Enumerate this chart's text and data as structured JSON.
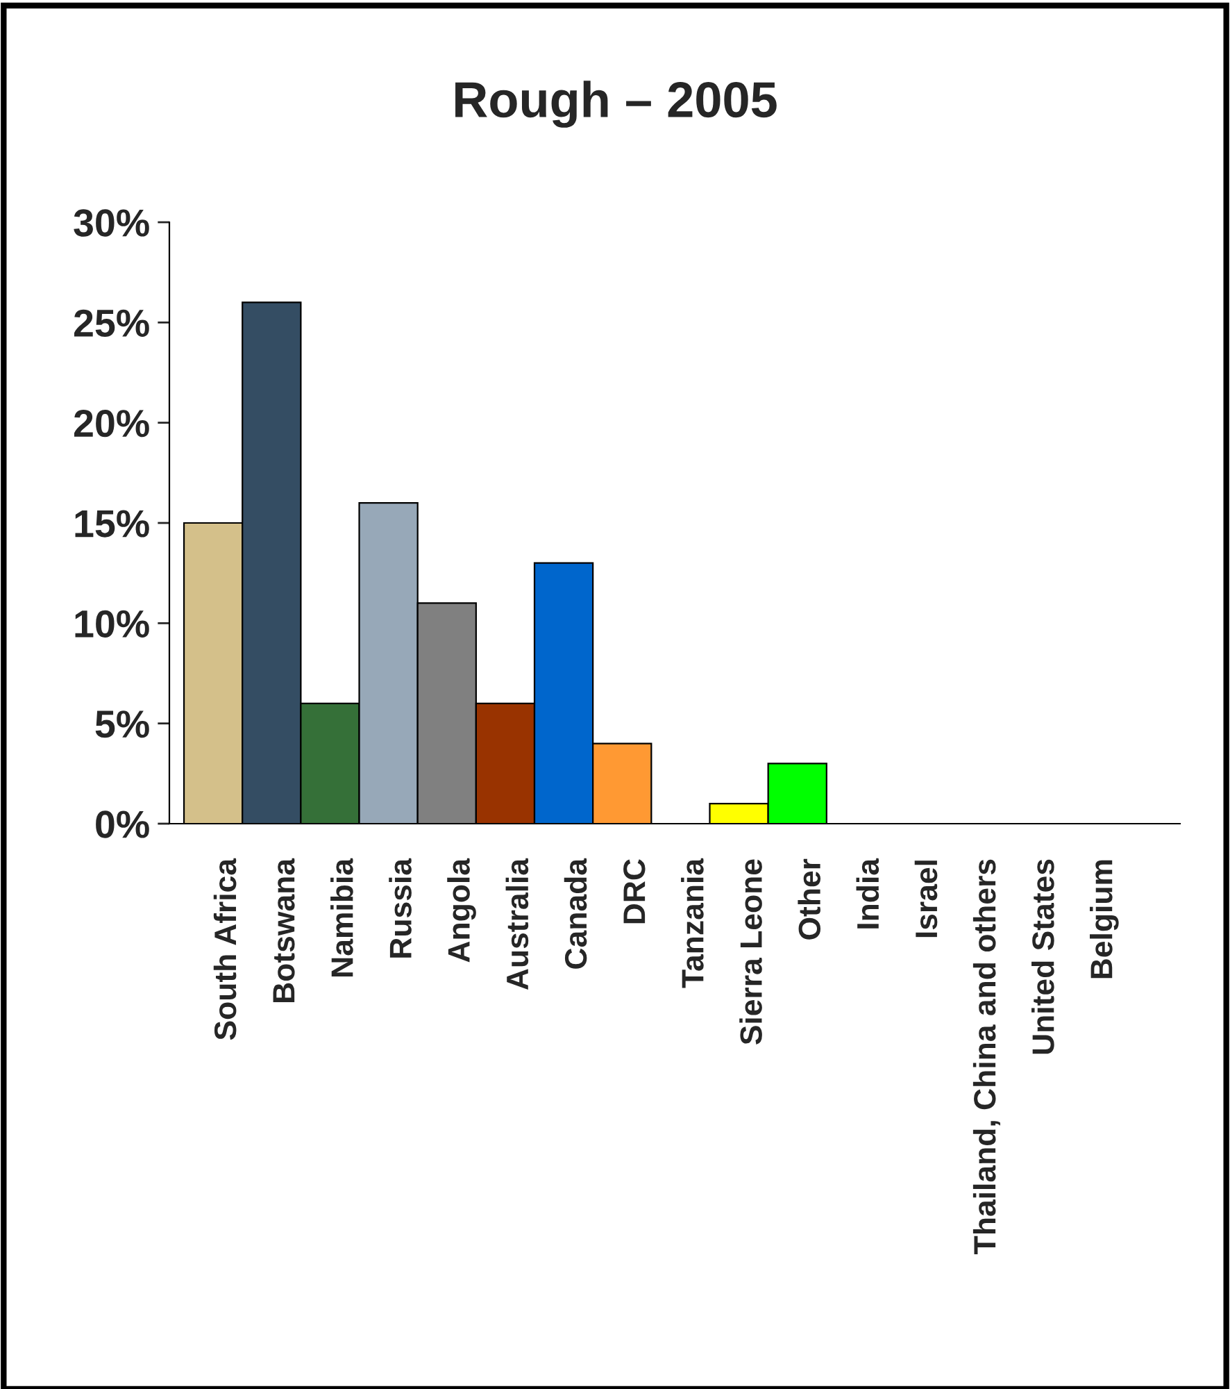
{
  "chart_data": {
    "type": "bar",
    "title": "Rough – 2005",
    "categories": [
      "South Africa",
      "Botswana",
      "Namibia",
      "Russia",
      "Angola",
      "Australia",
      "Canada",
      "DRC",
      "Tanzania",
      "Sierra Leone",
      "Other",
      "India",
      "Israel",
      "Thailand, China and others",
      "United States",
      "Belgium"
    ],
    "values": [
      15,
      26,
      6,
      16,
      11,
      6,
      13,
      4,
      0,
      1,
      3,
      0,
      0,
      0,
      0,
      0
    ],
    "colors": [
      "#d4c08a",
      "#344d63",
      "#357038",
      "#97a8b8",
      "#808080",
      "#993300",
      "#0066cc",
      "#ff9933",
      null,
      "#ffff00",
      "#00ff00",
      null,
      null,
      null,
      null,
      null
    ],
    "ylim": [
      0,
      30
    ],
    "yticks": [
      {
        "value": 0,
        "label": "0%"
      },
      {
        "value": 5,
        "label": "5%"
      },
      {
        "value": 10,
        "label": "10%"
      },
      {
        "value": 15,
        "label": "15%"
      },
      {
        "value": 20,
        "label": "20%"
      },
      {
        "value": 25,
        "label": "25%"
      },
      {
        "value": 30,
        "label": "30%"
      }
    ],
    "grid": false,
    "legend": false
  }
}
